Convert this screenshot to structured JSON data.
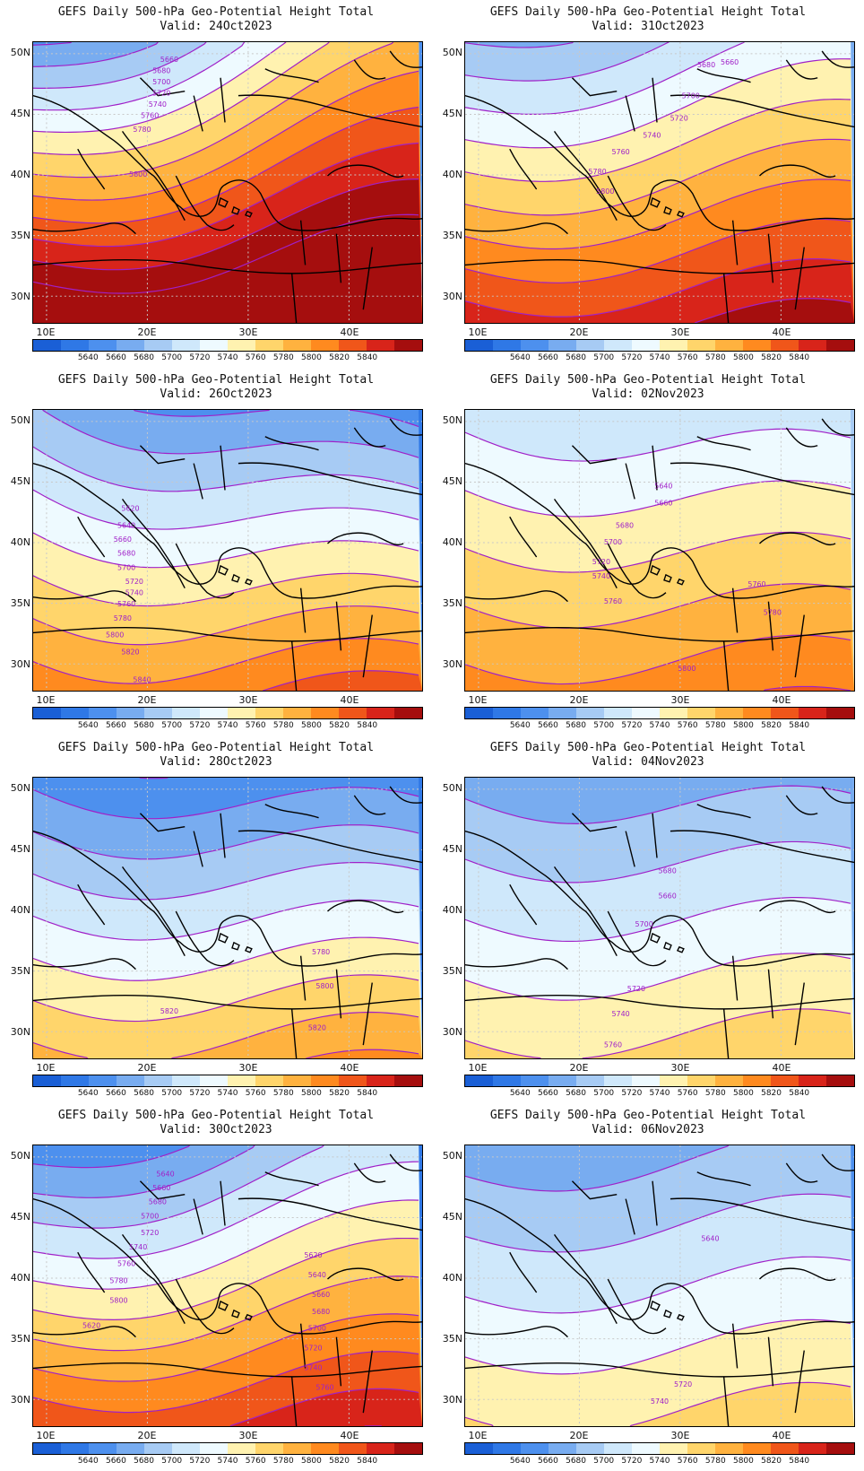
{
  "title_line1": "GEFS Daily 500-hPa Geo-Potential Height Total",
  "valid_prefix": "Valid:",
  "lat_labels": [
    "50N",
    "45N",
    "40N",
    "35N",
    "30N"
  ],
  "lon_labels": [
    "10E",
    "20E",
    "30E",
    "40E"
  ],
  "colorbar": {
    "colors": [
      "#1a5fd6",
      "#2f78e6",
      "#4d90ee",
      "#78acf0",
      "#a7cbf4",
      "#cfe8fb",
      "#eefaff",
      "#fff2b0",
      "#ffd56b",
      "#ffb23f",
      "#ff8a1f",
      "#f0561a",
      "#d8241a",
      "#a50e0e"
    ],
    "labels": [
      "5640",
      "5660",
      "5680",
      "5700",
      "5720",
      "5740",
      "5760",
      "5780",
      "5800",
      "5820",
      "5840"
    ]
  },
  "contour_color": "#a020c8",
  "panels": [
    {
      "date": "24Oct2023",
      "trend": 0.55,
      "base": 5800,
      "amp": 160,
      "labels": [
        [
          "5660",
          0.35,
          0.07
        ],
        [
          "5680",
          0.33,
          0.11
        ],
        [
          "5700",
          0.33,
          0.15
        ],
        [
          "5720",
          0.33,
          0.19
        ],
        [
          "5740",
          0.32,
          0.23
        ],
        [
          "5760",
          0.3,
          0.27
        ],
        [
          "5780",
          0.28,
          0.32
        ],
        [
          "5800",
          0.27,
          0.48
        ]
      ]
    },
    {
      "date": "31Oct2023",
      "trend": 0.25,
      "base": 5760,
      "amp": 120,
      "labels": [
        [
          "5680",
          0.62,
          0.09
        ],
        [
          "5660",
          0.68,
          0.08
        ],
        [
          "5700",
          0.58,
          0.2
        ],
        [
          "5720",
          0.55,
          0.28
        ],
        [
          "5740",
          0.48,
          0.34
        ],
        [
          "5760",
          0.4,
          0.4
        ],
        [
          "5780",
          0.34,
          0.47
        ],
        [
          "5800",
          0.36,
          0.54
        ]
      ]
    },
    {
      "date": "26Oct2023",
      "trend": -0.35,
      "base": 5720,
      "amp": 120,
      "labels": [
        [
          "5620",
          0.25,
          0.36
        ],
        [
          "5640",
          0.24,
          0.42
        ],
        [
          "5660",
          0.23,
          0.47
        ],
        [
          "5680",
          0.24,
          0.52
        ],
        [
          "5700",
          0.24,
          0.57
        ],
        [
          "5720",
          0.26,
          0.62
        ],
        [
          "5740",
          0.26,
          0.66
        ],
        [
          "5760",
          0.24,
          0.7
        ],
        [
          "5780",
          0.23,
          0.75
        ],
        [
          "5800",
          0.21,
          0.81
        ],
        [
          "5820",
          0.25,
          0.87
        ],
        [
          "5840",
          0.28,
          0.97
        ]
      ]
    },
    {
      "date": "02Nov2023",
      "trend": -0.15,
      "base": 5740,
      "amp": 80,
      "labels": [
        [
          "5640",
          0.51,
          0.28
        ],
        [
          "5660",
          0.51,
          0.34
        ],
        [
          "5680",
          0.41,
          0.42
        ],
        [
          "5700",
          0.38,
          0.48
        ],
        [
          "5720",
          0.35,
          0.55
        ],
        [
          "5740",
          0.35,
          0.6
        ],
        [
          "5760",
          0.38,
          0.69
        ],
        [
          "5760",
          0.75,
          0.63
        ],
        [
          "5780",
          0.79,
          0.73
        ],
        [
          "5800",
          0.57,
          0.93
        ]
      ]
    },
    {
      "date": "28Oct2023",
      "trend": -0.15,
      "base": 5700,
      "amp": 110,
      "labels": [
        [
          "5780",
          0.74,
          0.63
        ],
        [
          "5800",
          0.75,
          0.75
        ],
        [
          "5820",
          0.35,
          0.84
        ],
        [
          "5820",
          0.73,
          0.9
        ]
      ]
    },
    {
      "date": "04Nov2023",
      "trend": -0.1,
      "base": 5700,
      "amp": 75,
      "labels": [
        [
          "5680",
          0.52,
          0.34
        ],
        [
          "5660",
          0.52,
          0.43
        ],
        [
          "5700",
          0.46,
          0.53
        ],
        [
          "5720",
          0.44,
          0.76
        ],
        [
          "5740",
          0.4,
          0.85
        ],
        [
          "5760",
          0.38,
          0.96
        ]
      ]
    },
    {
      "date": "30Oct2023",
      "trend": 0.3,
      "base": 5740,
      "amp": 130,
      "labels": [
        [
          "5640",
          0.34,
          0.11
        ],
        [
          "5660",
          0.33,
          0.16
        ],
        [
          "5680",
          0.32,
          0.21
        ],
        [
          "5700",
          0.3,
          0.26
        ],
        [
          "5720",
          0.3,
          0.32
        ],
        [
          "5740",
          0.27,
          0.37
        ],
        [
          "5760",
          0.24,
          0.43
        ],
        [
          "5780",
          0.22,
          0.49
        ],
        [
          "5800",
          0.22,
          0.56
        ],
        [
          "5620",
          0.72,
          0.4
        ],
        [
          "5640",
          0.73,
          0.47
        ],
        [
          "5660",
          0.74,
          0.54
        ],
        [
          "5680",
          0.74,
          0.6
        ],
        [
          "5700",
          0.73,
          0.66
        ],
        [
          "5720",
          0.72,
          0.73
        ],
        [
          "5740",
          0.72,
          0.8
        ],
        [
          "5760",
          0.75,
          0.87
        ],
        [
          "5620",
          0.15,
          0.65
        ]
      ]
    },
    {
      "date": "06Nov2023",
      "trend": 0.05,
      "base": 5700,
      "amp": 70,
      "labels": [
        [
          "5640",
          0.63,
          0.34
        ],
        [
          "5720",
          0.56,
          0.86
        ],
        [
          "5740",
          0.5,
          0.92
        ]
      ]
    }
  ]
}
